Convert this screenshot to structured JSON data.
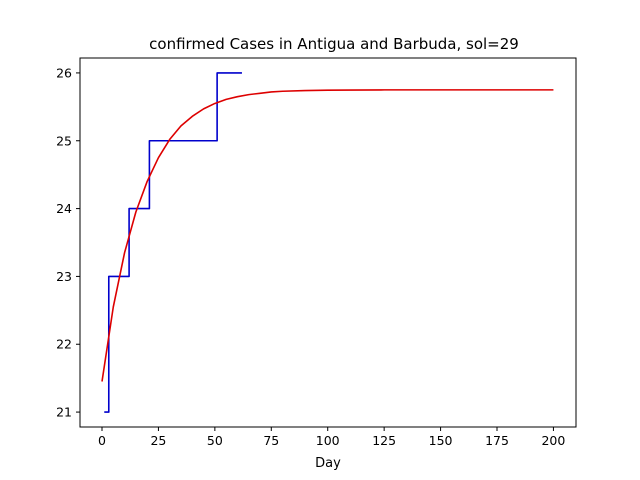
{
  "chart_data": {
    "type": "line",
    "title": "confirmed Cases in Antigua and Barbuda, sol=29",
    "xlabel": "Day",
    "ylabel": "",
    "xlim": [
      -9.75,
      210
    ],
    "ylim": [
      20.78,
      26.22
    ],
    "xticks": [
      0,
      25,
      50,
      75,
      100,
      125,
      150,
      175,
      200
    ],
    "yticks": [
      21,
      22,
      23,
      24,
      25,
      26
    ],
    "grid": false,
    "legend": "none",
    "series": [
      {
        "kind": "step",
        "color": "#0000cc",
        "x": [
          1,
          2,
          3,
          4,
          5,
          6,
          7,
          8,
          9,
          10,
          11,
          12,
          13,
          14,
          15,
          16,
          17,
          18,
          19,
          20,
          21,
          22,
          23,
          24,
          25,
          26,
          27,
          28,
          29,
          30,
          31,
          32,
          33,
          34,
          35,
          36,
          37,
          38,
          39,
          40,
          41,
          42,
          43,
          44,
          45,
          46,
          47,
          48,
          49,
          50,
          51,
          52,
          53,
          54,
          55,
          56,
          57,
          58,
          59,
          60,
          61,
          62
        ],
        "y": [
          21,
          21,
          23,
          23,
          23,
          23,
          23,
          23,
          23,
          23,
          23,
          24,
          24,
          24,
          24,
          24,
          24,
          24,
          24,
          24,
          25,
          25,
          25,
          25,
          25,
          25,
          25,
          25,
          25,
          25,
          25,
          25,
          25,
          25,
          25,
          25,
          25,
          25,
          25,
          25,
          25,
          25,
          25,
          25,
          25,
          25,
          25,
          25,
          25,
          25,
          26,
          26,
          26,
          26,
          26,
          26,
          26,
          26,
          26,
          26,
          26,
          26
        ]
      },
      {
        "kind": "fit",
        "color": "#dd0000",
        "x": [
          0,
          5,
          10,
          15,
          20,
          25,
          30,
          35,
          40,
          45,
          50,
          55,
          60,
          65,
          70,
          75,
          80,
          90,
          100,
          110,
          125,
          150,
          175,
          200
        ],
        "y": [
          21.45,
          22.55,
          23.35,
          23.95,
          24.4,
          24.75,
          25.02,
          25.22,
          25.36,
          25.47,
          25.55,
          25.61,
          25.65,
          25.68,
          25.7,
          25.72,
          25.73,
          25.74,
          25.745,
          25.748,
          25.75,
          25.75,
          25.75,
          25.75
        ]
      }
    ]
  }
}
